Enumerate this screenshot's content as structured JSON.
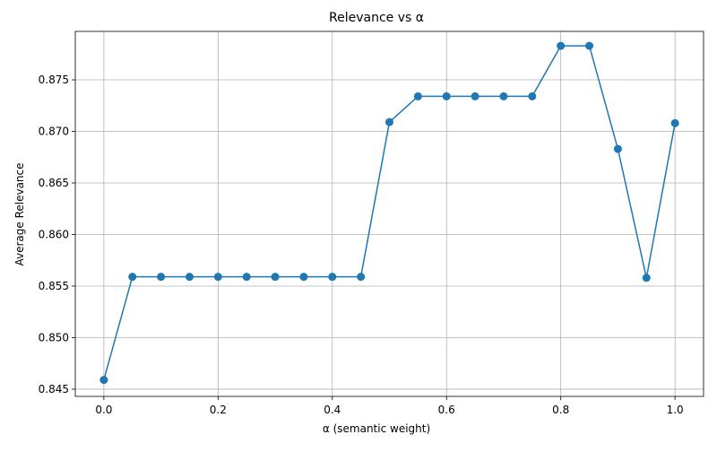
{
  "chart_data": {
    "type": "line",
    "title": "Relevance vs α",
    "xlabel": "α (semantic weight)",
    "ylabel": "Average Relevance",
    "xlim": [
      -0.05,
      1.05
    ],
    "ylim": [
      0.8443,
      0.8797
    ],
    "xticks": [
      0.0,
      0.2,
      0.4,
      0.6,
      0.8,
      1.0
    ],
    "xtick_labels": [
      "0.0",
      "0.2",
      "0.4",
      "0.6",
      "0.8",
      "1.0"
    ],
    "yticks": [
      0.845,
      0.85,
      0.855,
      0.86,
      0.865,
      0.87,
      0.875
    ],
    "ytick_labels": [
      "0.845",
      "0.850",
      "0.855",
      "0.860",
      "0.865",
      "0.870",
      "0.875"
    ],
    "grid": true,
    "color": "#1f77b4",
    "marker": "circle",
    "series": [
      {
        "x": [
          0.0,
          0.05,
          0.1,
          0.15,
          0.2,
          0.25,
          0.3,
          0.35,
          0.4,
          0.45,
          0.5,
          0.55,
          0.6,
          0.65,
          0.7,
          0.75,
          0.8,
          0.85,
          0.9,
          0.95,
          1.0
        ],
        "y": [
          0.8459,
          0.8559,
          0.8559,
          0.8559,
          0.8559,
          0.8559,
          0.8559,
          0.8559,
          0.8559,
          0.8559,
          0.8709,
          0.8734,
          0.8734,
          0.8734,
          0.8734,
          0.8734,
          0.8783,
          0.8783,
          0.8683,
          0.8558,
          0.8708
        ]
      }
    ]
  }
}
